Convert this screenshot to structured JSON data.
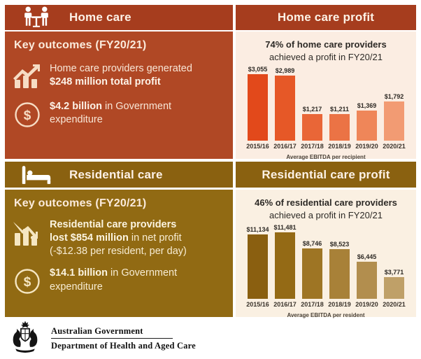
{
  "colors": {
    "home_header_bg": "#A63D1E",
    "home_panel_bg": "#B04825",
    "res_header_bg": "#8A6110",
    "res_panel_bg": "#916A13",
    "home_chart_bg": "#FBEDE2",
    "res_chart_bg": "#FAF0E2",
    "heading_text": "#2D2A26"
  },
  "home": {
    "title": "Home care",
    "key_outcomes_title": "Key outcomes (FY20/21)",
    "bullet1": {
      "line1": "Home care providers generated",
      "line2_bold": "$248 million total profit"
    },
    "bullet2": {
      "bold": "$4.2 billion",
      "rest": " in Government",
      "line2": "expenditure"
    }
  },
  "residential": {
    "title": "Residential care",
    "key_outcomes_title": "Key outcomes (FY20/21)",
    "bullet1": {
      "line1_bold": "Residential care providers",
      "line2_bold": "lost $854 million",
      "line2_rest": " in net profit",
      "line3": "(-$12.38 per resident, per day)"
    },
    "bullet2": {
      "bold": "$14.1 billion",
      "rest": " in Government",
      "line2": "expenditure"
    }
  },
  "chart_data": [
    {
      "type": "bar",
      "title": "Home care profit",
      "headline_bold": "74% of home care providers",
      "headline_rest": "achieved a profit in FY20/21",
      "categories": [
        "2015/16",
        "2016/17",
        "2017/18",
        "2018/19",
        "2019/20",
        "2020/21"
      ],
      "values": [
        3055,
        2989,
        1217,
        1211,
        1369,
        1792
      ],
      "value_labels": [
        "$3,055",
        "$2,989",
        "$1,217",
        "$1,211",
        "$1,369",
        "$1,792"
      ],
      "xlabel": "Average EBITDA per recipient",
      "ylim": [
        0,
        3055
      ],
      "grid": false,
      "legend": false,
      "bar_colors": [
        "#E2491B",
        "#E65827",
        "#E96637",
        "#EB7345",
        "#EF8659",
        "#F29B73"
      ]
    },
    {
      "type": "bar",
      "title": "Residential care profit",
      "headline_bold": "46% of residential care providers",
      "headline_rest": "achieved a profit in FY20/21",
      "categories": [
        "2015/16",
        "2016/17",
        "2017/18",
        "2018/19",
        "2019/20",
        "2020/21"
      ],
      "values": [
        11134,
        11481,
        8746,
        8523,
        6445,
        3771
      ],
      "value_labels": [
        "$11,134",
        "$11,481",
        "$8,746",
        "$8,523",
        "$6,445",
        "$3,771"
      ],
      "xlabel": "Average EBITDA per resident",
      "ylim": [
        0,
        11481
      ],
      "grid": false,
      "legend": false,
      "bar_colors": [
        "#8A5F10",
        "#946A15",
        "#9E7524",
        "#A88138",
        "#B28E4E",
        "#BFA068"
      ]
    }
  ],
  "footer": {
    "gov": "Australian Government",
    "dept": "Department of Health and Aged Care"
  }
}
